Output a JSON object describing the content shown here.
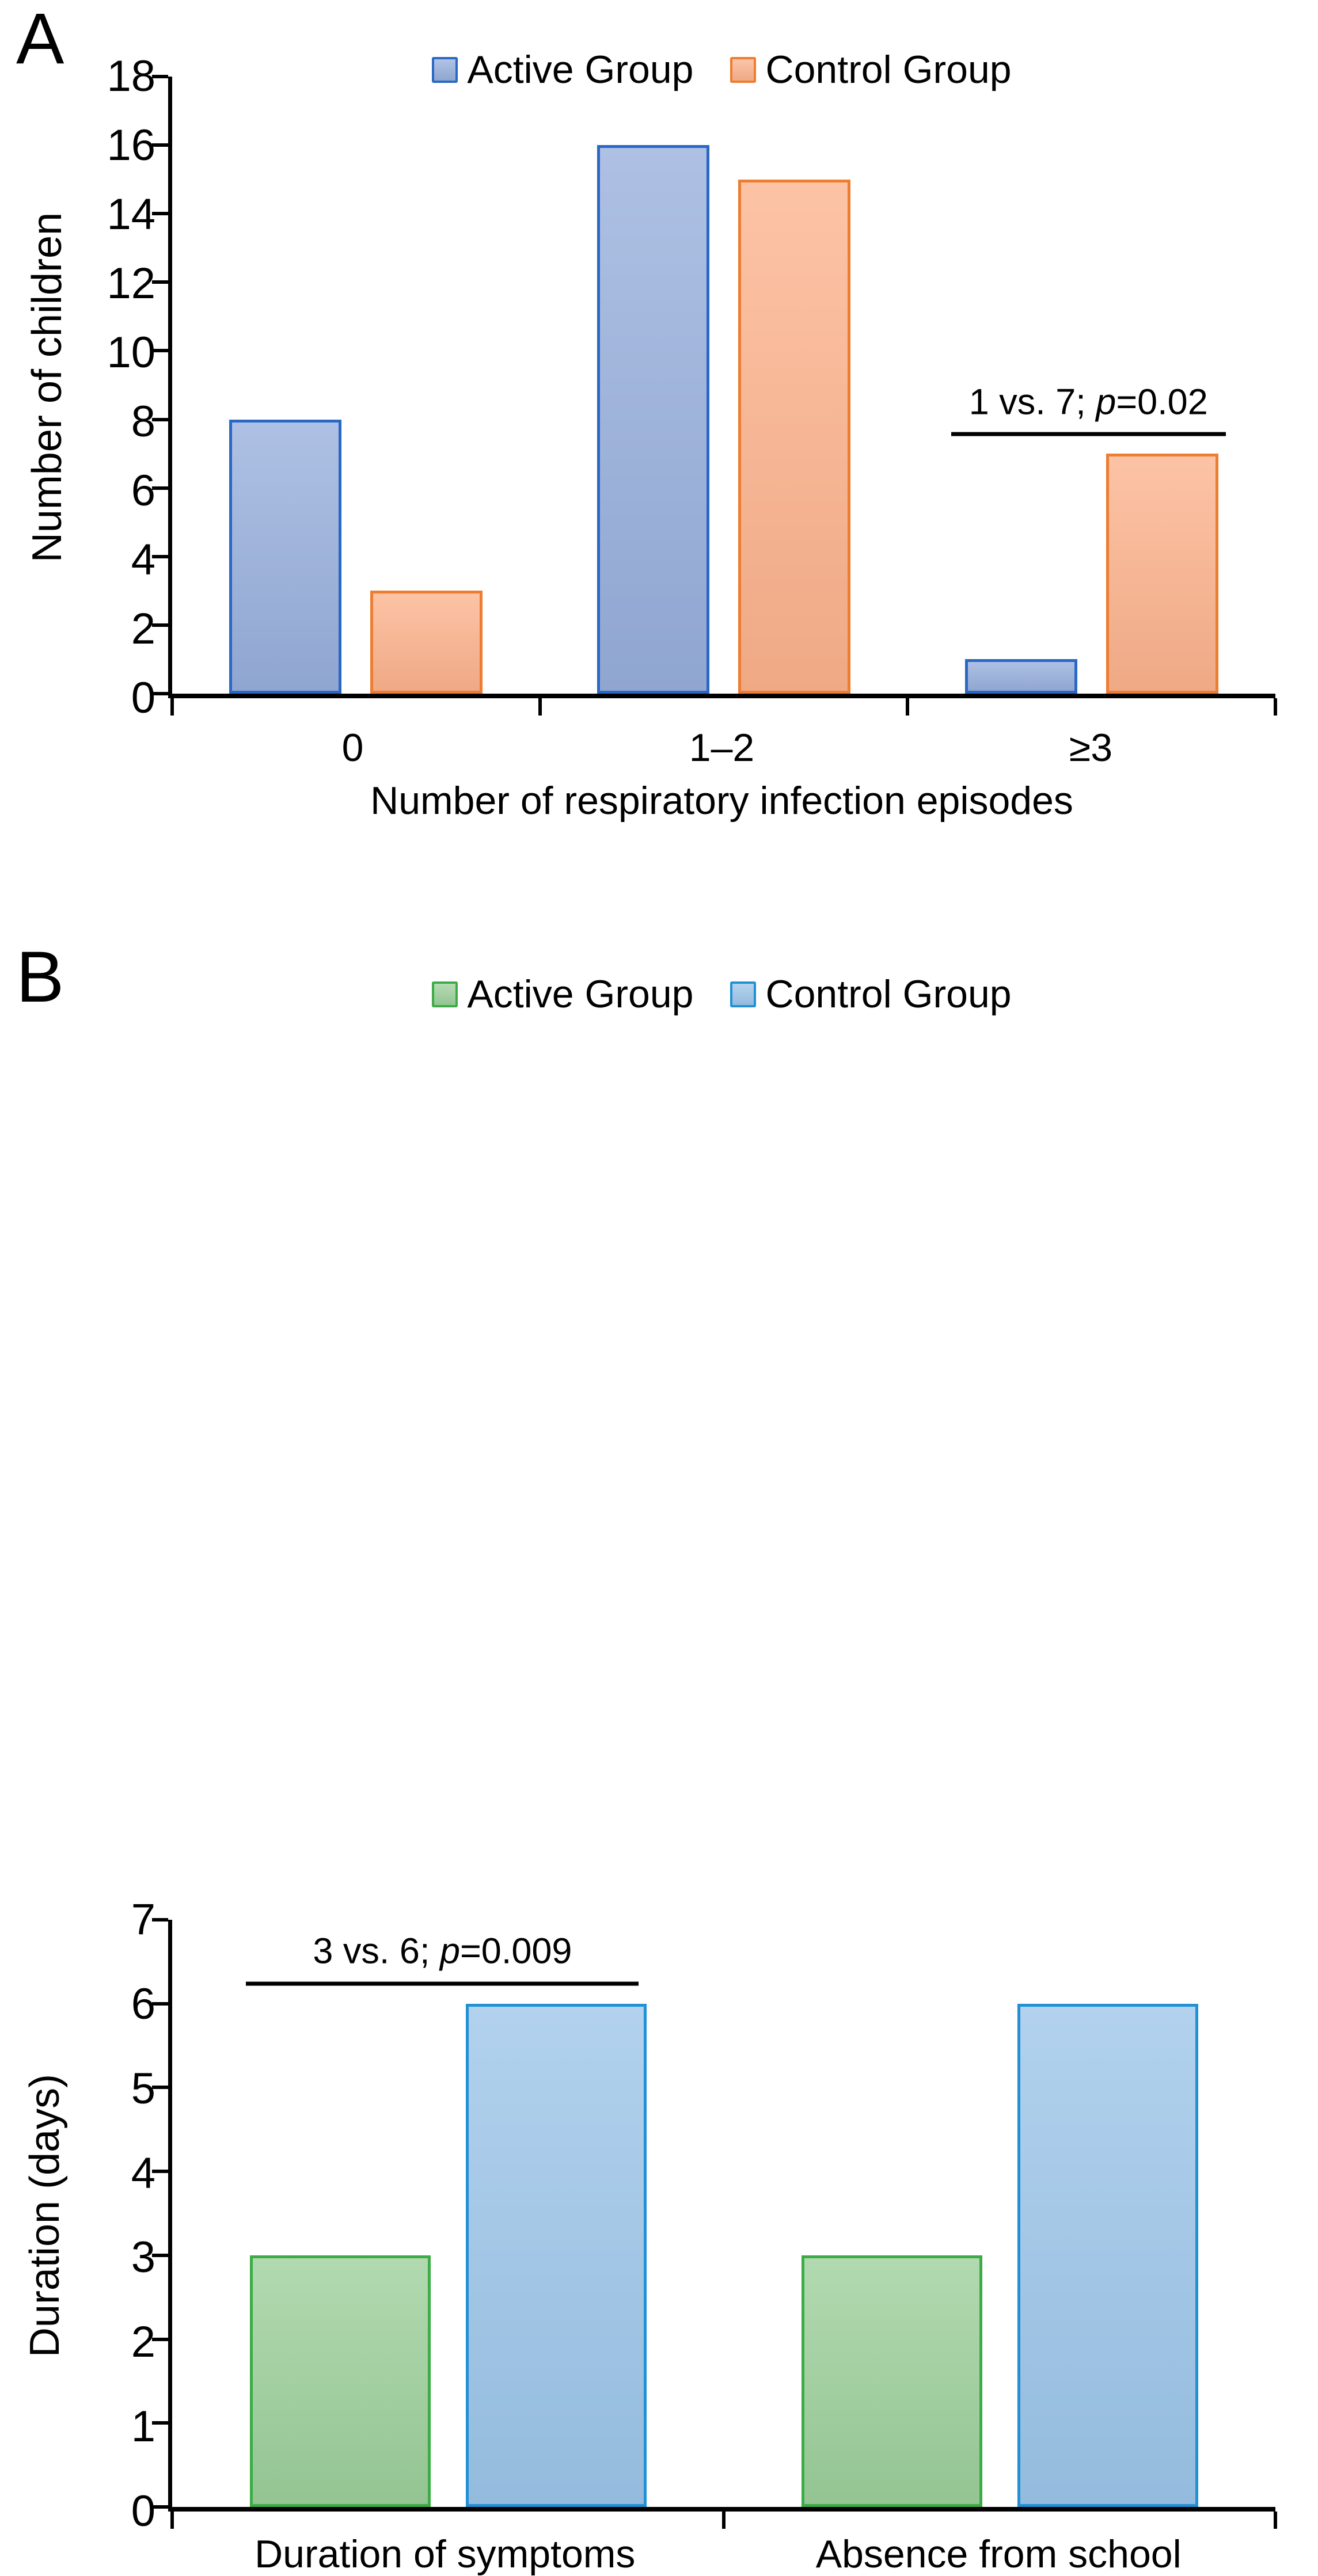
{
  "chart_data": [
    {
      "type": "bar",
      "panel_label": "A",
      "categories": [
        "0",
        "1–2",
        "≥3"
      ],
      "series": [
        {
          "name": "Active Group",
          "values": [
            8,
            16,
            1
          ],
          "fill_color": "#97AFDC",
          "border_color": "#2A68C4"
        },
        {
          "name": "Control Group",
          "values": [
            3,
            15,
            7
          ],
          "fill_color": "#FCB28C",
          "border_color": "#ED7D31"
        }
      ],
      "ylabel": "Number of children",
      "xlabel": "Number of respiratory infection episodes",
      "ylim": [
        0,
        18
      ],
      "yticks": [
        0,
        2,
        4,
        6,
        8,
        10,
        12,
        14,
        16,
        18
      ],
      "grid": false,
      "legend_position": "top",
      "annotation": {
        "text": "1 vs. 7; p=0.02",
        "prefix": "1 vs. 7; ",
        "p": "p",
        "suffix": "=0.02",
        "over_category": "≥3"
      }
    },
    {
      "type": "bar",
      "panel_label": "B",
      "categories": [
        "Duration of symptoms",
        "Absence from school"
      ],
      "series": [
        {
          "name": "Active Group",
          "values": [
            3,
            3
          ],
          "fill_color": "#9CCF9A",
          "border_color": "#3CAC46"
        },
        {
          "name": "Control Group",
          "values": [
            6,
            6
          ],
          "fill_color": "#9CC5E9",
          "border_color": "#2190D5"
        }
      ],
      "ylabel": "Duration (days)",
      "xlabel": "",
      "ylim": [
        0,
        7
      ],
      "yticks": [
        0,
        1,
        2,
        3,
        4,
        5,
        6,
        7
      ],
      "grid": false,
      "legend_position": "top",
      "annotation": {
        "text": "3 vs. 6; p=0.009",
        "prefix": "3 vs. 6; ",
        "p": "p",
        "suffix": "=0.009",
        "over_category": "Duration of symptoms"
      }
    }
  ]
}
